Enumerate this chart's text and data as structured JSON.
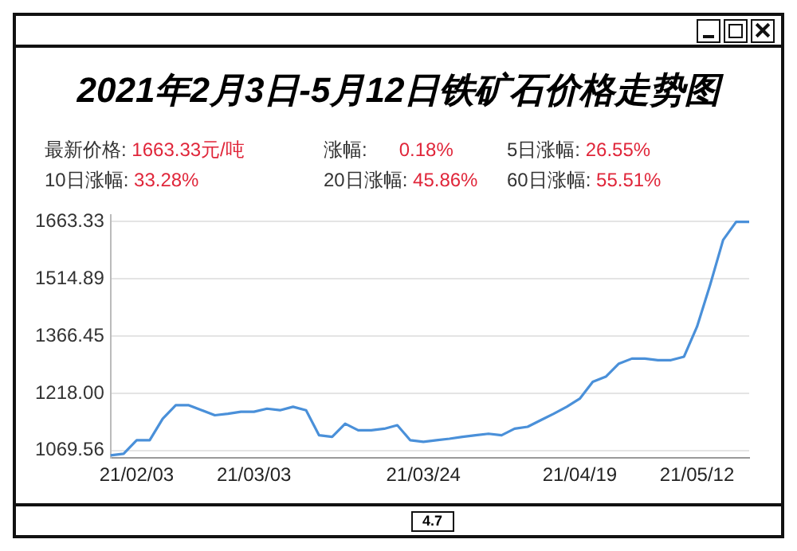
{
  "chart_data": {
    "type": "line",
    "title": "2021年2月3日-5月12日铁矿石价格走势图",
    "annotations": [
      "最新价格: 1663.33元/吨",
      "涨幅:      0.18%",
      "5日涨幅: 26.55%",
      "10日涨幅: 33.28%",
      "20日涨幅: 45.86%",
      "60日涨幅: 55.51%",
      "4.7"
    ],
    "categories": [
      null,
      null,
      "21/02/03",
      null,
      null,
      null,
      null,
      null,
      null,
      null,
      null,
      "21/03/03",
      null,
      null,
      null,
      null,
      null,
      null,
      null,
      null,
      null,
      null,
      null,
      null,
      "21/03/24",
      null,
      null,
      null,
      null,
      null,
      null,
      null,
      null,
      null,
      null,
      null,
      "21/04/19",
      null,
      null,
      null,
      null,
      null,
      null,
      null,
      null,
      "21/05/12",
      null,
      null,
      null,
      null
    ],
    "series": [
      {
        "color": "#4a90d9",
        "values": [
          1057,
          1061,
          1096,
          1096,
          1152,
          1187,
          1187,
          1174,
          1161,
          1165,
          1170,
          1170,
          1178,
          1174,
          1183,
          1174,
          1109,
          1105,
          1139,
          1122,
          1122,
          1126,
          1135,
          1096,
          1092,
          1096,
          1100,
          1105,
          1109,
          1113,
          1109,
          1126,
          1131,
          1148,
          1165,
          1183,
          1204,
          1248,
          1261,
          1295,
          1308,
          1308,
          1304,
          1304,
          1313,
          1391,
          1499,
          1616,
          1663,
          1663
        ]
      }
    ],
    "ylim": [
      1050,
      1680
    ],
    "yticks": [
      1069.56,
      {
        "value": 1218,
        "label": "1218.00"
      },
      1366.45,
      1514.89,
      1663.33
    ],
    "grid": "y",
    "legend": false,
    "marker": "none",
    "line_style": "solid"
  }
}
